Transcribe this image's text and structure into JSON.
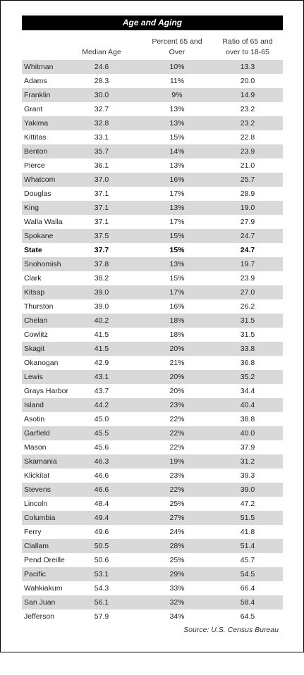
{
  "title": "Age and Aging",
  "table": {
    "headers": [
      "Median Age",
      "Percent 65 and Over",
      "Ratio of  65 and over to 18-65"
    ],
    "rows": [
      [
        "Whitman",
        "24.6",
        "10%",
        "13.3"
      ],
      [
        "Adams",
        "28.3",
        "11%",
        "20.0"
      ],
      [
        "Franklin",
        "30.0",
        "9%",
        "14.9"
      ],
      [
        "Grant",
        "32.7",
        "13%",
        "23.2"
      ],
      [
        "Yakima",
        "32.8",
        "13%",
        "23.2"
      ],
      [
        "Kittitas",
        "33.1",
        "15%",
        "22.8"
      ],
      [
        "Benton",
        "35.7",
        "14%",
        "23.9"
      ],
      [
        "Pierce",
        "36.1",
        "13%",
        "21.0"
      ],
      [
        "Whatcom",
        "37.0",
        "16%",
        "25.7"
      ],
      [
        "Douglas",
        "37.1",
        "17%",
        "28.9"
      ],
      [
        "King",
        "37.1",
        "13%",
        "19.0"
      ],
      [
        "Walla Walla",
        "37.1",
        "17%",
        "27.9"
      ],
      [
        "Spokane",
        "37.5",
        "15%",
        "24.7"
      ],
      [
        "State",
        "37.7",
        "15%",
        "24.7"
      ],
      [
        "Snohomish",
        "37.8",
        "13%",
        "19.7"
      ],
      [
        "Clark",
        "38.2",
        "15%",
        "23.9"
      ],
      [
        "Kitsap",
        "39.0",
        "17%",
        "27.0"
      ],
      [
        "Thurston",
        "39.0",
        "16%",
        "26.2"
      ],
      [
        "Chelan",
        "40.2",
        "18%",
        "31.5"
      ],
      [
        "Cowlitz",
        "41.5",
        "18%",
        "31.5"
      ],
      [
        "Skagit",
        "41.5",
        "20%",
        "33.8"
      ],
      [
        "Okanogan",
        "42.9",
        "21%",
        "36.8"
      ],
      [
        "Lewis",
        "43.1",
        "20%",
        "35.2"
      ],
      [
        "Grays Harbor",
        "43.7",
        "20%",
        "34.4"
      ],
      [
        "Island",
        "44.2",
        "23%",
        "40.4"
      ],
      [
        "Asotin",
        "45.0",
        "22%",
        "38.8"
      ],
      [
        "Garfield",
        "45.5",
        "22%",
        "40.0"
      ],
      [
        "Mason",
        "45.6",
        "22%",
        "37.9"
      ],
      [
        "Skamania",
        "46.3",
        "19%",
        "31.2"
      ],
      [
        "Klickitat",
        "46.6",
        "23%",
        "39.3"
      ],
      [
        "Stevens",
        "46.6",
        "22%",
        "39.0"
      ],
      [
        "Lincoln",
        "48.4",
        "25%",
        "47.2"
      ],
      [
        "Columbia",
        "49.4",
        "27%",
        "51.5"
      ],
      [
        "Ferry",
        "49.6",
        "24%",
        "41.8"
      ],
      [
        "Clallam",
        "50.5",
        "28%",
        "51.4"
      ],
      [
        "Pend Oreille",
        "50.6",
        "25%",
        "45.7"
      ],
      [
        "Pacific",
        "53.1",
        "29%",
        "54.5"
      ],
      [
        "Wahkiakum",
        "54.3",
        "33%",
        "66.4"
      ],
      [
        "San Juan",
        "56.1",
        "32%",
        "58.4"
      ],
      [
        "Jefferson",
        "57.9",
        "34%",
        "64.5"
      ]
    ],
    "bold_rows": [
      13
    ]
  },
  "source": "Source: U.S. Census Bureau"
}
